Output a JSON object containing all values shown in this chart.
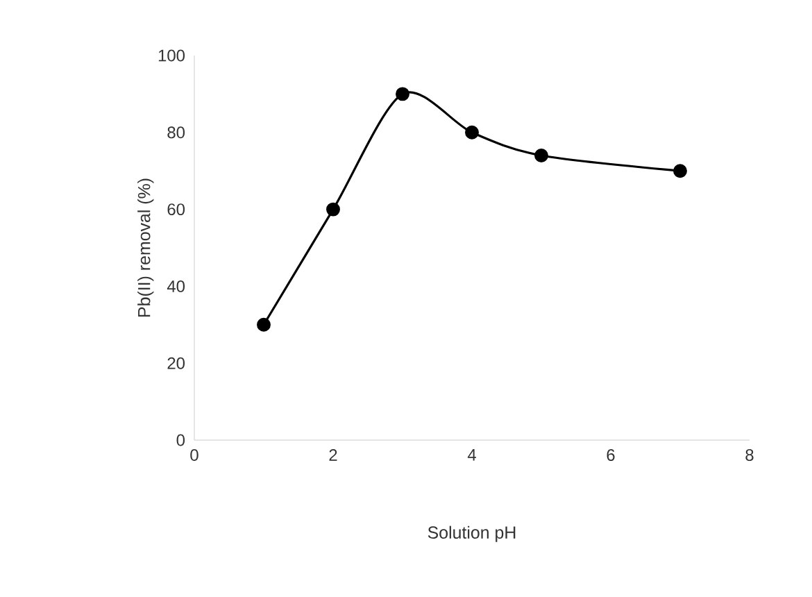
{
  "chart_data": {
    "type": "line",
    "xlabel": "Solution pH",
    "ylabel": "Pb(II) removal (%)",
    "series": [
      {
        "color": "#000000",
        "x": [
          1,
          2,
          3,
          4,
          5,
          7
        ],
        "values": [
          30,
          60,
          90,
          80,
          74,
          70
        ]
      }
    ],
    "xlim": [
      0,
      8
    ],
    "xticks": [
      0,
      2,
      4,
      6,
      8
    ],
    "ylim": [
      0,
      100
    ],
    "yticks": [
      0,
      20,
      40,
      60,
      80,
      100
    ],
    "marker": "circle",
    "line_style": "solid"
  }
}
